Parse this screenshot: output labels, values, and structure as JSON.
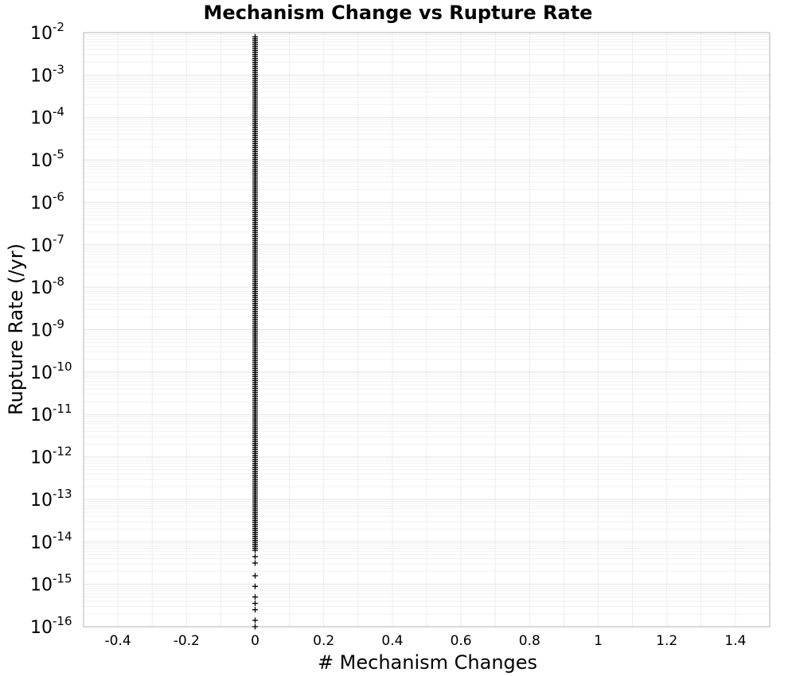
{
  "chart_data": {
    "type": "scatter",
    "title": "Mechanism Change vs Rupture Rate",
    "xlabel": "# Mechanism Changes",
    "ylabel": "Rupture Rate (/yr)",
    "xlim": [
      -0.5,
      1.5
    ],
    "ylim": [
      1e-16,
      0.01
    ],
    "y_scale": "log",
    "x_ticks": [
      "-0.4",
      "-0.2",
      "0",
      "0.2",
      "0.4",
      "0.6",
      "0.8",
      "1",
      "1.2",
      "1.4"
    ],
    "x_tick_values": [
      -0.4,
      -0.2,
      0,
      0.2,
      0.4,
      0.6,
      0.8,
      1,
      1.2,
      1.4
    ],
    "y_ticks": [
      {
        "base": "10",
        "exp": "-16"
      },
      {
        "base": "10",
        "exp": "-15"
      },
      {
        "base": "10",
        "exp": "-14"
      },
      {
        "base": "10",
        "exp": "-13"
      },
      {
        "base": "10",
        "exp": "-12"
      },
      {
        "base": "10",
        "exp": "-11"
      },
      {
        "base": "10",
        "exp": "-10"
      },
      {
        "base": "10",
        "exp": "-9"
      },
      {
        "base": "10",
        "exp": "-8"
      },
      {
        "base": "10",
        "exp": "-7"
      },
      {
        "base": "10",
        "exp": "-6"
      },
      {
        "base": "10",
        "exp": "-5"
      },
      {
        "base": "10",
        "exp": "-4"
      },
      {
        "base": "10",
        "exp": "-3"
      },
      {
        "base": "10",
        "exp": "-2"
      }
    ],
    "grid": true,
    "marker": "+",
    "marker_color": "#000000",
    "series": [
      {
        "name": "",
        "x": 0,
        "y_log10_dense_range": [
          -14.2,
          -2.1
        ],
        "y_log10_sparse": [
          -14.35,
          -14.5,
          -14.8,
          -15.05,
          -15.3,
          -15.45,
          -15.6,
          -15.85,
          -16.0
        ]
      }
    ]
  }
}
